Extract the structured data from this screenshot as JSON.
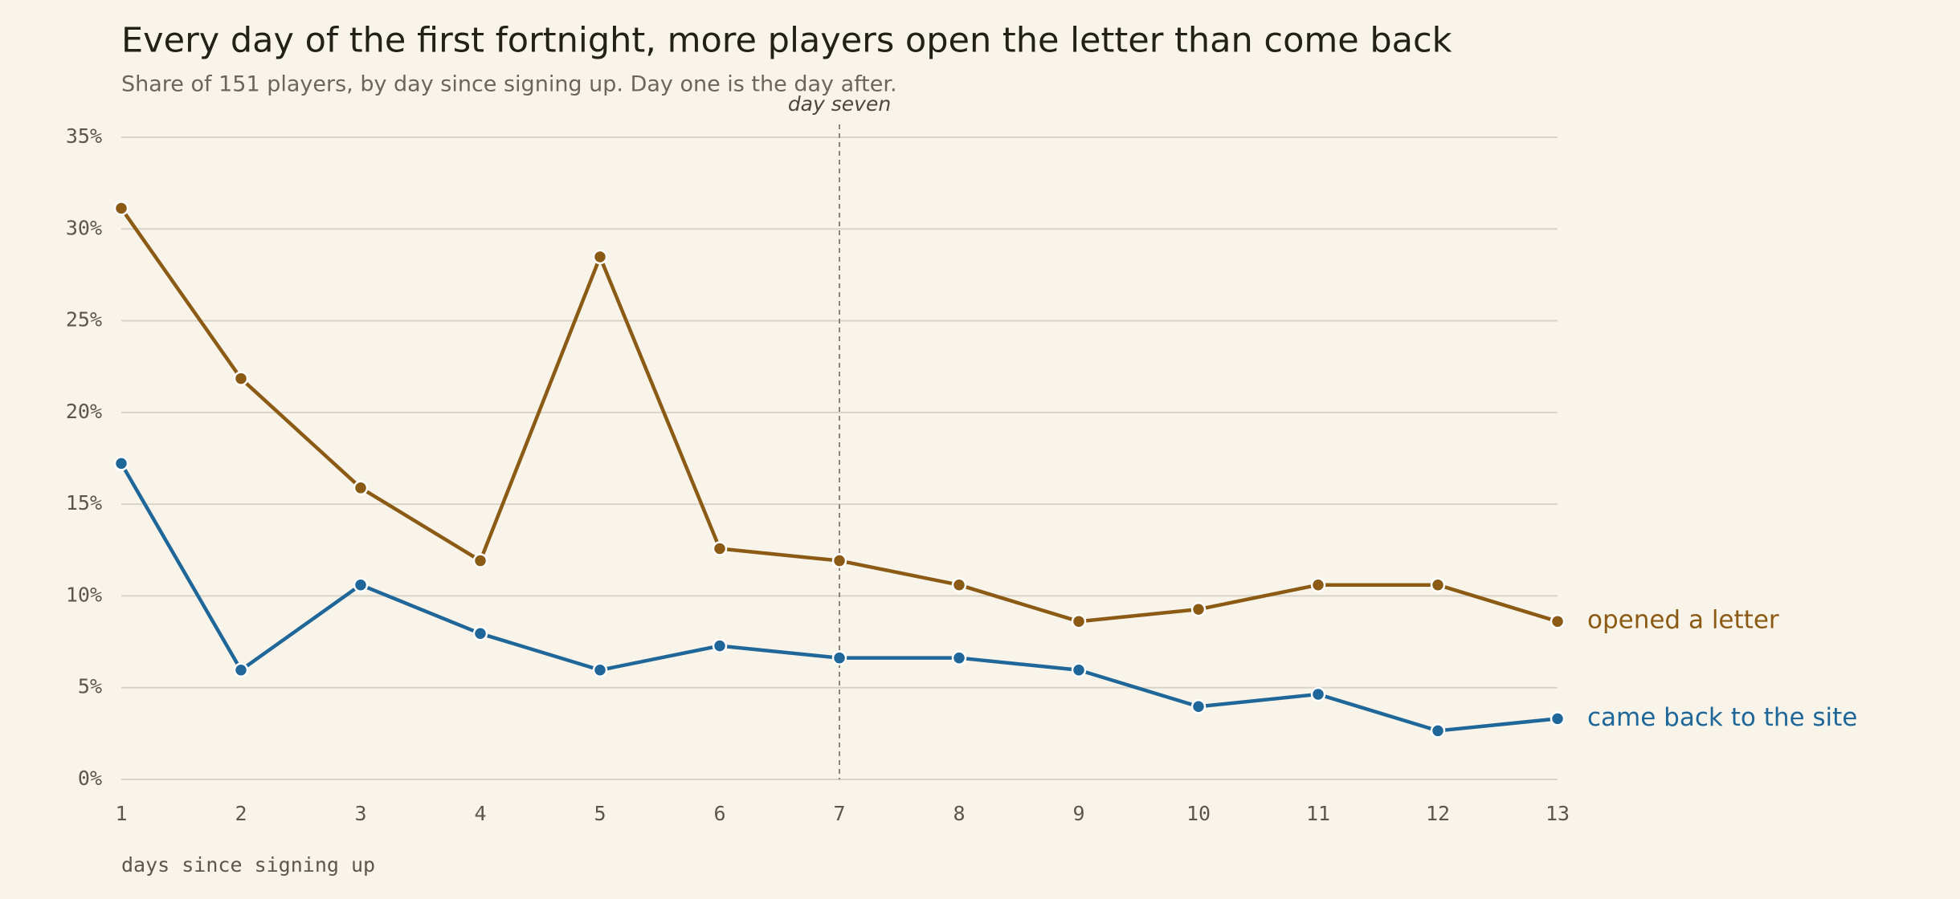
{
  "chart_data": {
    "type": "line",
    "title": "Every day of the first fortnight, more players open the letter than come back",
    "subtitle": "Share of 151 players, by day since signing up. Day one is the day after.",
    "x_label": "days since signing up",
    "x": [
      1,
      2,
      3,
      4,
      5,
      6,
      7,
      8,
      9,
      10,
      11,
      12,
      13
    ],
    "series": [
      {
        "name": "opened a letter",
        "color": "#8b5a14",
        "values": [
          31.13,
          21.85,
          15.89,
          11.92,
          28.48,
          12.58,
          11.92,
          10.6,
          8.61,
          9.27,
          10.6,
          10.6,
          8.61
        ]
      },
      {
        "name": "came back to the site",
        "color": "#1f6699",
        "values": [
          17.22,
          5.96,
          10.6,
          7.95,
          5.96,
          7.28,
          6.62,
          6.62,
          5.96,
          3.97,
          4.64,
          2.65,
          3.31
        ]
      }
    ],
    "xlim": [
      1,
      13
    ],
    "xticks": [
      1,
      2,
      3,
      4,
      5,
      6,
      7,
      8,
      9,
      10,
      11,
      12,
      13
    ],
    "ylim": [
      0,
      35
    ],
    "yticks": [
      {
        "value": 0,
        "label": "0%"
      },
      {
        "value": 5,
        "label": "5%"
      },
      {
        "value": 10,
        "label": "10%"
      },
      {
        "value": 15,
        "label": "15%"
      },
      {
        "value": 20,
        "label": "20%"
      },
      {
        "value": 25,
        "label": "25%"
      },
      {
        "value": 30,
        "label": "30%"
      },
      {
        "value": 35,
        "label": "35%"
      }
    ],
    "grid": true,
    "annotations": [
      {
        "x": 7,
        "label": "day seven"
      }
    ]
  }
}
